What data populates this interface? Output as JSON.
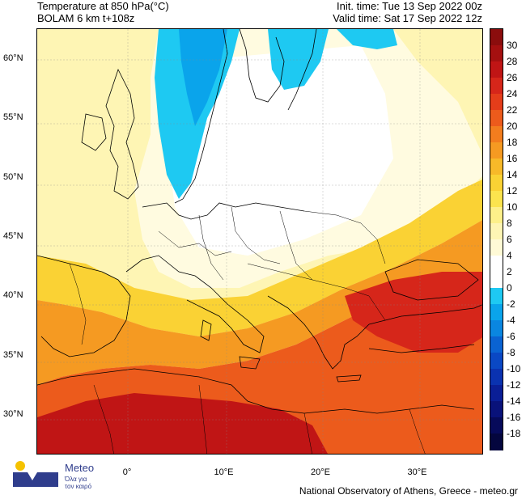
{
  "header": {
    "title_line1": "Temperature at 850 hPa(°C)",
    "title_line2": "BOLAM 6 km t+108z",
    "init_time": "Init. time: Tue 13 Sep 2022 00z",
    "valid_time": "Valid time: Sat 17 Sep 2022 12z"
  },
  "map": {
    "lat_labels": [
      {
        "text": "60°N",
        "lat": 60
      },
      {
        "text": "55°N",
        "lat": 55
      },
      {
        "text": "50°N",
        "lat": 50
      },
      {
        "text": "45°N",
        "lat": 45
      },
      {
        "text": "40°N",
        "lat": 40
      },
      {
        "text": "35°N",
        "lat": 35
      },
      {
        "text": "30°N",
        "lat": 30
      }
    ],
    "lon_labels": [
      {
        "text": "0°",
        "lon": 0
      },
      {
        "text": "10°E",
        "lon": 10
      },
      {
        "text": "20°E",
        "lon": 20
      },
      {
        "text": "30°E",
        "lon": 30
      }
    ]
  },
  "colorbar": {
    "labels": [
      "30",
      "28",
      "26",
      "24",
      "22",
      "20",
      "18",
      "16",
      "14",
      "12",
      "10",
      "8",
      "6",
      "4",
      "2",
      "0",
      "-2",
      "-4",
      "-6",
      "-8",
      "-10",
      "-12",
      "-14",
      "-16",
      "-18"
    ],
    "colors": [
      "#8b0d0d",
      "#a51010",
      "#c01515",
      "#d6261a",
      "#e43d1a",
      "#ec5b1c",
      "#f27d1e",
      "#f59a22",
      "#f7b929",
      "#fad234",
      "#fbe44e",
      "#fdf08a",
      "#fef5b4",
      "#fffad6",
      "#ffffff",
      "#ffffff",
      "#1ec9f2",
      "#0aa4eb",
      "#0a86e0",
      "#0a63d2",
      "#0a48c4",
      "#0a32b0",
      "#0a1e96",
      "#09127a",
      "#060a5a",
      "#04063e"
    ]
  },
  "branding": {
    "logo_name": "Meteo",
    "logo_tagline": "Όλα για τον καιρό",
    "footer": "National Observatory of Athens, Greece - meteo.gr"
  },
  "style": {
    "cold_cyan": "#1ec9f2",
    "sea_cyan": "#0aa4eb",
    "logo_blue": "#2f3d8c",
    "logo_yellow": "#f5c200"
  }
}
